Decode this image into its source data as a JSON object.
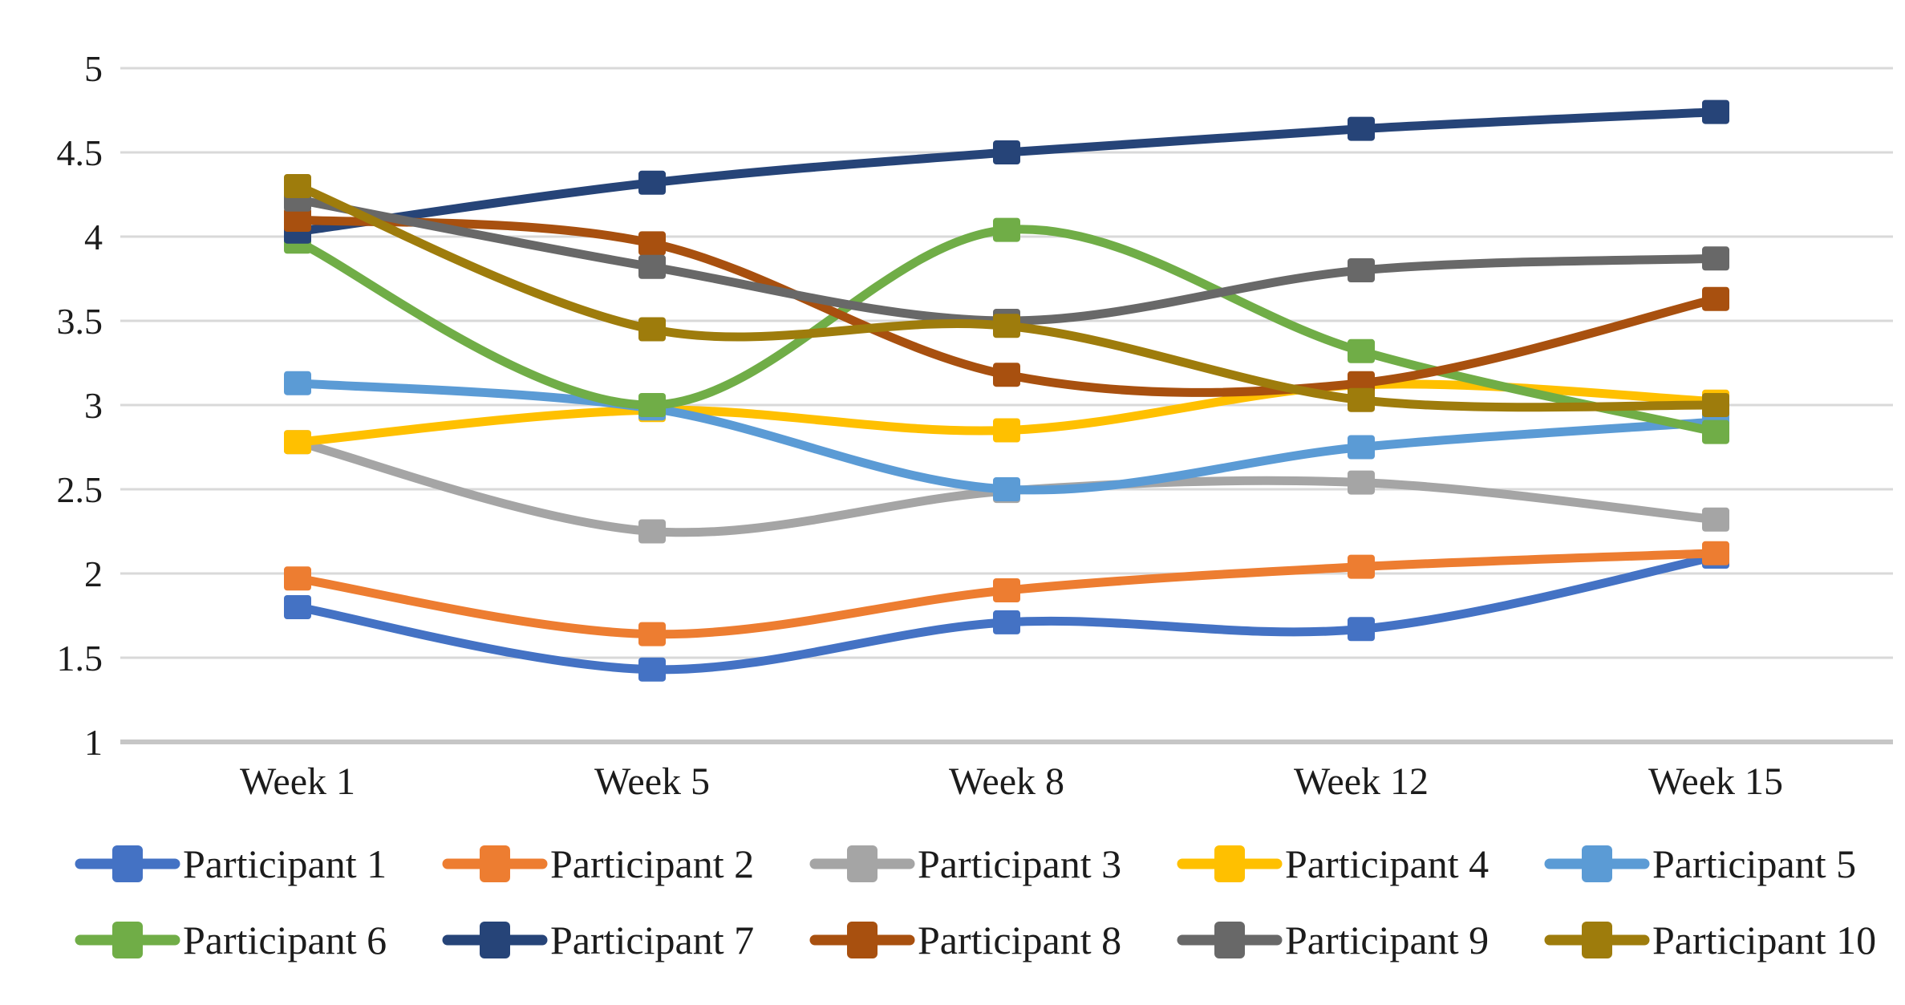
{
  "chart_data": {
    "type": "line",
    "title": "",
    "xlabel": "",
    "ylabel": "",
    "categories": [
      "Week 1",
      "Week 5",
      "Week 8",
      "Week 12",
      "Week 15"
    ],
    "series": [
      {
        "name": "Participant 1",
        "color": "#4472C4",
        "values": [
          1.8,
          1.43,
          1.71,
          1.67,
          2.1
        ]
      },
      {
        "name": "Participant 2",
        "color": "#ED7D31",
        "values": [
          1.97,
          1.64,
          1.9,
          2.04,
          2.12
        ]
      },
      {
        "name": "Participant 3",
        "color": "#A5A5A5",
        "values": [
          2.78,
          2.25,
          2.49,
          2.54,
          2.32
        ]
      },
      {
        "name": "Participant 4",
        "color": "#FFC000",
        "values": [
          2.78,
          2.97,
          2.85,
          3.12,
          3.02
        ]
      },
      {
        "name": "Participant 5",
        "color": "#5B9BD5",
        "values": [
          3.13,
          2.98,
          2.5,
          2.75,
          2.9
        ]
      },
      {
        "name": "Participant 6",
        "color": "#70AD47",
        "values": [
          3.97,
          3.0,
          4.04,
          3.32,
          2.84
        ]
      },
      {
        "name": "Participant 7",
        "color": "#264478",
        "values": [
          4.03,
          4.32,
          4.5,
          4.64,
          4.74
        ]
      },
      {
        "name": "Participant 8",
        "color": "#A8500F",
        "values": [
          4.1,
          3.96,
          3.18,
          3.13,
          3.63
        ]
      },
      {
        "name": "Participant 9",
        "color": "#686868",
        "values": [
          4.22,
          3.82,
          3.5,
          3.8,
          3.87
        ]
      },
      {
        "name": "Participant 10",
        "color": "#9E7C0C",
        "values": [
          4.3,
          3.45,
          3.47,
          3.03,
          3.0
        ]
      }
    ],
    "ylim": [
      1,
      5
    ],
    "ytick_step": 0.5,
    "y_tick_labels": [
      "5",
      "4.5",
      "4",
      "3.5",
      "3",
      "2.5",
      "2",
      "1.5",
      "1"
    ],
    "grid": true,
    "gridline_color": "#d9d9d9",
    "axis_line_color": "#c6c6c6",
    "legend_position": "bottom",
    "legend_rows": 2,
    "legend_marker": "square-on-line"
  }
}
